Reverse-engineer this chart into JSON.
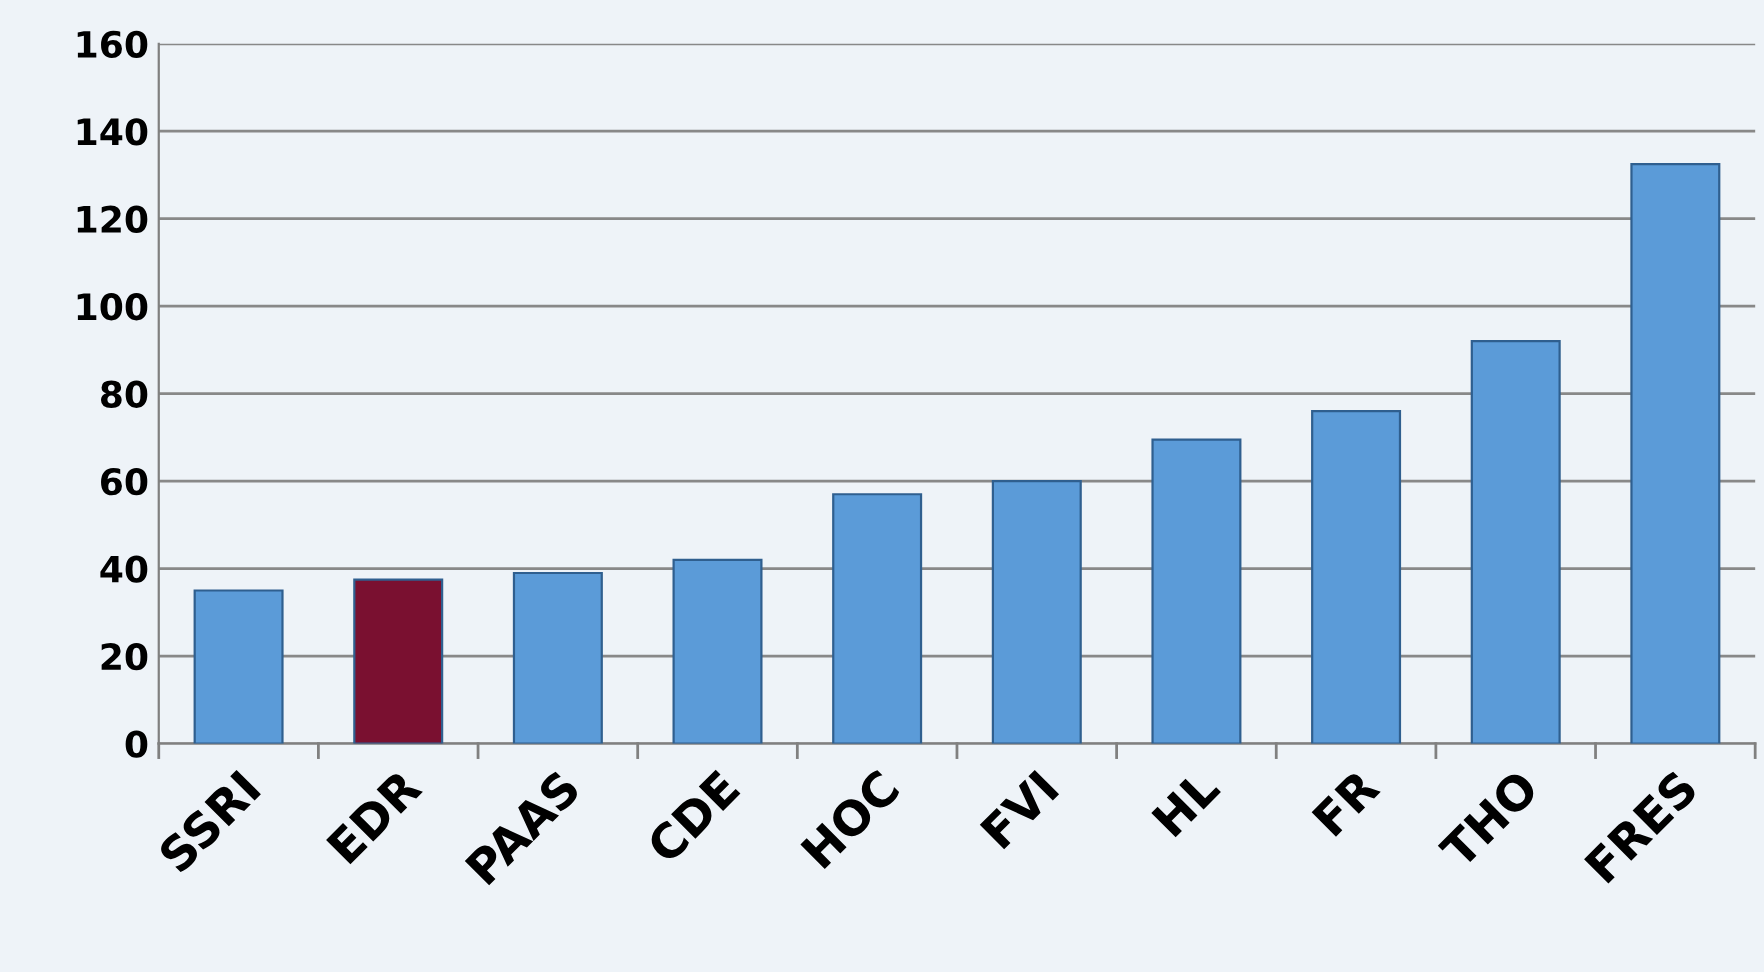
{
  "chart_data": {
    "type": "bar",
    "categories": [
      "SSRI",
      "EDR",
      "PAAS",
      "CDE",
      "HOC",
      "FVI",
      "HL",
      "FR",
      "THO",
      "FRES"
    ],
    "values": [
      35,
      37.5,
      39,
      42,
      57,
      60,
      69.5,
      76,
      92,
      132.5
    ],
    "colors": [
      "#5b9bd8",
      "#7a1030",
      "#5b9bd8",
      "#5b9bd8",
      "#5b9bd8",
      "#5b9bd8",
      "#5b9bd8",
      "#5b9bd8",
      "#5b9bd8",
      "#5b9bd8"
    ],
    "ylim": [
      0,
      160
    ],
    "yticks": [
      0,
      20,
      40,
      60,
      80,
      100,
      120,
      140,
      160
    ],
    "grid": "y",
    "legend": false
  }
}
